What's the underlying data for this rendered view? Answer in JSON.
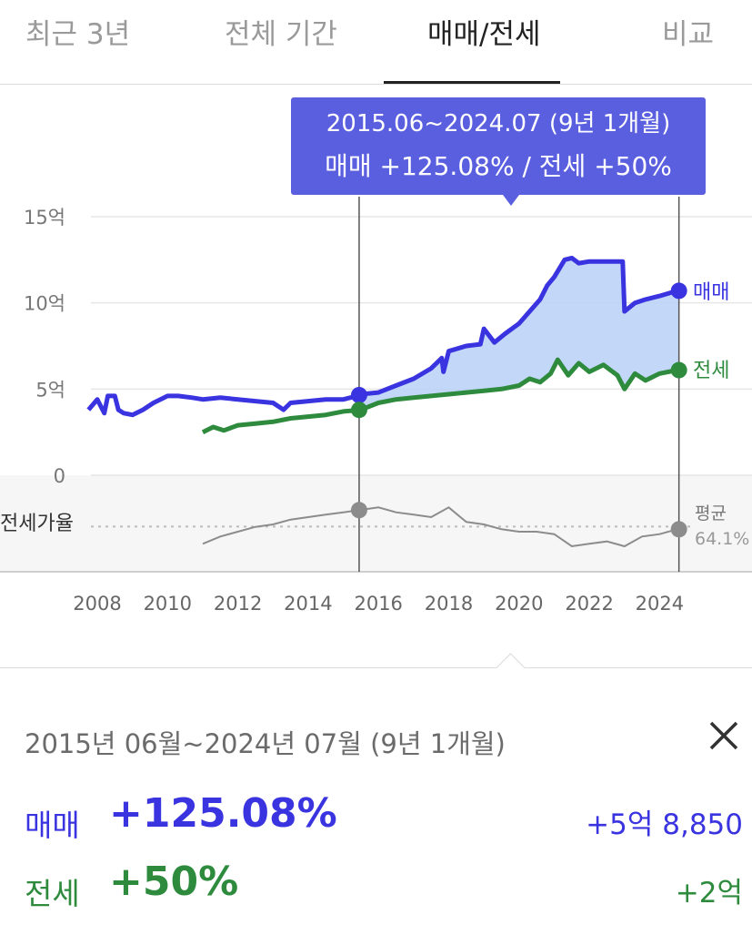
{
  "tabs": [
    {
      "label": "최근 3년"
    },
    {
      "label": "전체 기간"
    },
    {
      "label": "매매/전세"
    },
    {
      "label": "비교"
    }
  ],
  "active_tab": "매매/전세",
  "colors": {
    "sale": "#3a33e0",
    "jeonse": "#2e8b3e",
    "ratio": "#8c8c8c",
    "tooltip_bg": "#5a5fe0",
    "fill": "#b9d0f8"
  },
  "chart_data": {
    "type": "line",
    "tooltip": {
      "period": "2015.06~2024.07 (9년 1개월)",
      "summary": "매매 +125.08%  /  전세 +50%"
    },
    "y_axis": {
      "ticks": [
        "15억",
        "10억",
        "5억",
        "0"
      ],
      "ylim": [
        0,
        15
      ]
    },
    "x_axis": {
      "ticks": [
        "2008",
        "2010",
        "2012",
        "2014",
        "2016",
        "2018",
        "2020",
        "2022",
        "2024"
      ],
      "xlim": [
        2007.9,
        2024.9
      ]
    },
    "ratio_label": "전세가율",
    "ratio_avg_label": "평균",
    "ratio_avg_value": "64.1%",
    "series": [
      {
        "name": "매매",
        "unit": "억",
        "x": [
          2007.75,
          2008.0,
          2008.2,
          2008.3,
          2008.5,
          2008.6,
          2008.75,
          2009.0,
          2009.3,
          2009.6,
          2010.0,
          2010.3,
          2010.7,
          2011.0,
          2011.5,
          2012.0,
          2012.5,
          2013.0,
          2013.3,
          2013.5,
          2014.0,
          2014.5,
          2015.0,
          2015.4,
          2015.5,
          2016.0,
          2016.5,
          2017.0,
          2017.5,
          2017.8,
          2017.85,
          2018.0,
          2018.5,
          2018.9,
          2019.0,
          2019.3,
          2019.6,
          2020.0,
          2020.3,
          2020.6,
          2020.8,
          2021.0,
          2021.3,
          2021.5,
          2021.7,
          2022.0,
          2022.5,
          2022.95,
          2023.0,
          2023.3,
          2023.6,
          2024.0,
          2024.5
        ],
        "values": [
          3.8,
          4.4,
          3.6,
          4.6,
          4.6,
          3.8,
          3.6,
          3.5,
          3.8,
          4.2,
          4.6,
          4.6,
          4.5,
          4.4,
          4.5,
          4.4,
          4.3,
          4.2,
          3.8,
          4.2,
          4.3,
          4.4,
          4.4,
          4.6,
          4.7,
          4.8,
          5.2,
          5.6,
          6.2,
          6.8,
          6.0,
          7.2,
          7.5,
          7.6,
          8.5,
          7.7,
          8.2,
          8.8,
          9.5,
          10.2,
          11.0,
          11.5,
          12.5,
          12.6,
          12.3,
          12.4,
          12.4,
          12.4,
          9.5,
          10.0,
          10.2,
          10.4,
          10.7
        ]
      },
      {
        "name": "전세",
        "unit": "억",
        "x": [
          2011.0,
          2011.3,
          2011.6,
          2012.0,
          2012.5,
          2013.0,
          2013.5,
          2014.0,
          2014.5,
          2015.0,
          2015.5,
          2016.0,
          2016.5,
          2017.0,
          2017.5,
          2018.0,
          2018.5,
          2019.0,
          2019.5,
          2020.0,
          2020.3,
          2020.6,
          2020.9,
          2021.1,
          2021.4,
          2021.7,
          2022.0,
          2022.4,
          2022.8,
          2023.0,
          2023.3,
          2023.6,
          2024.0,
          2024.5
        ],
        "values": [
          2.5,
          2.8,
          2.6,
          2.9,
          3.0,
          3.1,
          3.3,
          3.4,
          3.5,
          3.7,
          3.8,
          4.2,
          4.4,
          4.5,
          4.6,
          4.7,
          4.8,
          4.9,
          5.0,
          5.2,
          5.6,
          5.4,
          5.9,
          6.7,
          5.8,
          6.5,
          6.0,
          6.4,
          5.8,
          5.0,
          5.9,
          5.5,
          5.9,
          6.1
        ]
      },
      {
        "name": "전세가율",
        "unit": "%",
        "x": [
          2011.0,
          2011.5,
          2012.0,
          2012.5,
          2013.0,
          2013.5,
          2014.0,
          2014.5,
          2015.0,
          2015.5,
          2016.0,
          2016.5,
          2017.0,
          2017.5,
          2018.0,
          2018.5,
          2019.0,
          2019.5,
          2020.0,
          2020.5,
          2021.0,
          2021.5,
          2022.0,
          2022.5,
          2023.0,
          2023.5,
          2024.0,
          2024.5
        ],
        "values": [
          57,
          60,
          62,
          64,
          65,
          67,
          68,
          69,
          70,
          71,
          72,
          70,
          69,
          68,
          72,
          66,
          65,
          63,
          62,
          62,
          61,
          56,
          57,
          58,
          56,
          60,
          61,
          63
        ]
      }
    ],
    "selected_range": [
      2015.45,
      2024.55
    ]
  },
  "summary": {
    "period": "2015년 06월~2024년 07월 (9년 1개월)",
    "sale": {
      "label": "매매",
      "pct": "+125.08%",
      "amount": "+5억 8,850"
    },
    "jeonse": {
      "label": "전세",
      "pct": "+50%",
      "amount": "+2억"
    }
  }
}
